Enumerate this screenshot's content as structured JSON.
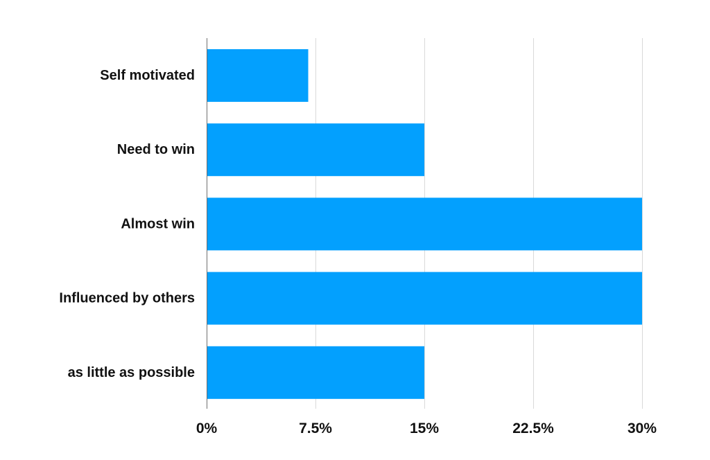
{
  "chart_data": {
    "type": "bar",
    "orientation": "horizontal",
    "categories": [
      "Self motivated",
      "Need to win",
      "Almost win",
      "Influenced by others",
      "as little as possible"
    ],
    "values": [
      7,
      15,
      30,
      30,
      15
    ],
    "xlim": [
      0,
      30
    ],
    "x_ticks": [
      0,
      7.5,
      15,
      22.5,
      30
    ],
    "x_tick_labels": [
      "0%",
      "7.5%",
      "15%",
      "22.5%",
      "30%"
    ],
    "grid": true,
    "bar_color": "#03a0fe",
    "title": "",
    "xlabel": "",
    "ylabel": ""
  }
}
